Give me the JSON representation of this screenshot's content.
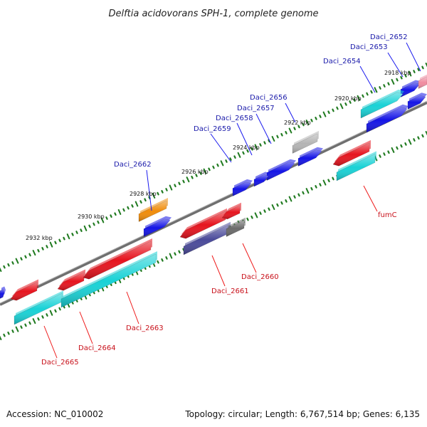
{
  "title": "Delftia acidovorans SPH-1, complete genome",
  "footer": {
    "accession": "Accession: NC_010002",
    "summary": "Topology: circular; Length: 6,767,514 bp; Genes: 6,135"
  },
  "ticks": [
    "2918 kbp",
    "2920 kbp",
    "2922 kbp",
    "2924 kbp",
    "2926 kbp",
    "2928 kbp",
    "2930 kbp",
    "2932 kbp"
  ],
  "labels_top": [
    "Daci_2652",
    "Daci_2653",
    "Daci_2654",
    "Daci_2656",
    "Daci_2657",
    "Daci_2658",
    "Daci_2659",
    "Daci_2662"
  ],
  "labels_bottom": [
    "fumC",
    "Daci_2660",
    "Daci_2661",
    "Daci_2663",
    "Daci_2664",
    "Daci_2665"
  ],
  "colors": {
    "backbone": "#7a7a7a",
    "tick_dot": "#1f7a1f",
    "forward_blue": "#1414e6",
    "forward_cyan": "#19d2d6",
    "reverse_red": "#e6141e",
    "gray": "#b4b4b4",
    "orange": "#f08c0a",
    "slate": "#4a4a9a",
    "pink": "#f08ca0"
  }
}
